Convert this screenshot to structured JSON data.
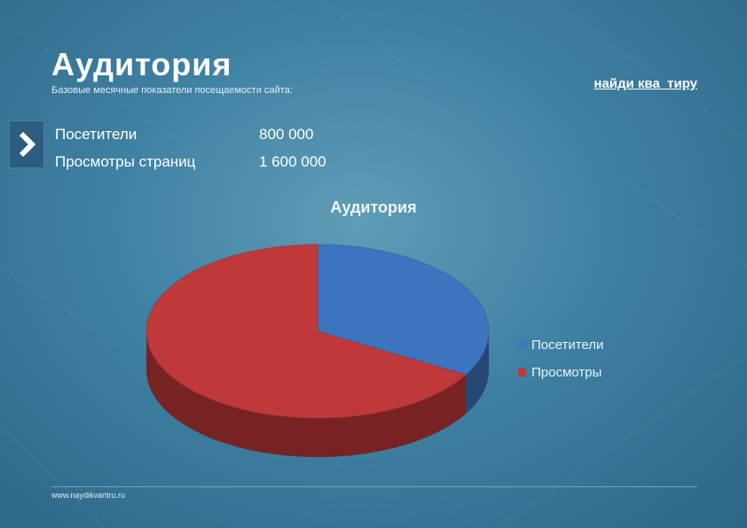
{
  "header": {
    "title": "Аудитория",
    "subtitle": "Базовые месячные показатели посещаемости сайта:",
    "logo_text": "найди ква_тиру"
  },
  "stats": [
    {
      "label": "Посетители",
      "value": "800 000"
    },
    {
      "label": "Просмотры страниц",
      "value": "1 600 000"
    }
  ],
  "footer": {
    "url": "www.naydikvartiru.ru"
  },
  "colors": {
    "blue": "#3b74bf",
    "red": "#c0393a"
  },
  "chart_data": {
    "type": "pie",
    "title": "Аудитория",
    "categories": [
      "Посетители",
      "Просмотры"
    ],
    "values": [
      800000,
      1600000
    ],
    "colors": [
      "#3b74bf",
      "#c0393a"
    ],
    "legend_position": "right",
    "style": "3d"
  }
}
